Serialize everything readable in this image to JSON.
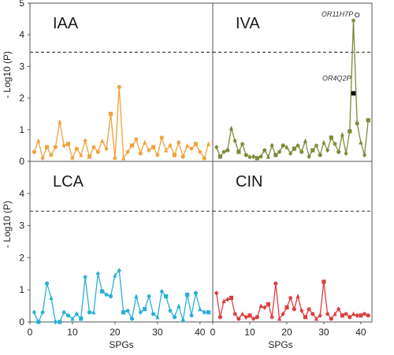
{
  "chart_data": {
    "type": "line",
    "ylabel": "- Log10 (P)",
    "xlabel": "SPGs",
    "xlim": [
      0,
      43
    ],
    "xticks": [
      0,
      10,
      20,
      30,
      40
    ],
    "ylim": [
      0,
      5
    ],
    "upper_yticks": [
      0,
      1,
      2,
      3,
      4,
      5
    ],
    "lower_yticks": [
      0,
      1,
      2,
      3,
      4
    ],
    "threshold": 3.45,
    "panels": [
      {
        "name": "IAA",
        "row": 0,
        "col": 0,
        "color": "#f0a23a",
        "x": [
          1,
          2,
          3,
          4,
          5,
          6,
          7,
          8,
          9,
          10,
          11,
          12,
          13,
          14,
          15,
          16,
          17,
          18,
          19,
          20,
          21,
          22,
          23,
          24,
          25,
          26,
          27,
          28,
          29,
          30,
          31,
          32,
          33,
          34,
          35,
          36,
          37,
          38,
          39,
          40,
          41,
          42
        ],
        "values": [
          0.3,
          0.65,
          0.1,
          0.45,
          0.2,
          0.45,
          1.25,
          0.5,
          0.55,
          0.1,
          0.4,
          0.2,
          0.65,
          0.15,
          0.45,
          0.3,
          0.65,
          0.4,
          1.5,
          0.1,
          2.35,
          0.1,
          0.3,
          0.5,
          0.7,
          0.25,
          0.6,
          0.35,
          0.45,
          0.2,
          0.75,
          0.35,
          0.5,
          0.2,
          0.6,
          0.15,
          0.5,
          0.4,
          0.55,
          0.3,
          0.1,
          0.55
        ]
      },
      {
        "name": "IVA",
        "row": 0,
        "col": 1,
        "color": "#7d8a38",
        "x": [
          1,
          2,
          3,
          4,
          5,
          6,
          7,
          8,
          9,
          10,
          11,
          12,
          13,
          14,
          15,
          16,
          17,
          18,
          19,
          20,
          21,
          22,
          23,
          24,
          25,
          26,
          27,
          28,
          29,
          30,
          31,
          32,
          33,
          34,
          35,
          36,
          37,
          38,
          39,
          40,
          41,
          42
        ],
        "values": [
          0.45,
          0.15,
          0.3,
          0.35,
          1.05,
          0.65,
          0.3,
          0.55,
          0.2,
          0.15,
          0.15,
          0.1,
          0.15,
          0.35,
          0.15,
          0.5,
          0.2,
          0.3,
          0.5,
          0.45,
          0.25,
          0.4,
          0.5,
          0.3,
          0.65,
          0.15,
          0.35,
          0.5,
          0.2,
          0.6,
          0.35,
          0.75,
          0.55,
          0.3,
          0.85,
          0.25,
          0.95,
          4.45,
          1.2,
          0.6,
          0.2,
          1.3
        ],
        "annotations": [
          {
            "text": "OR11H7P",
            "x": 39,
            "y": 4.55,
            "marker": "open-circle"
          },
          {
            "text": "OR4Q2P",
            "x": 38,
            "y": 2.15,
            "marker": "square"
          }
        ]
      },
      {
        "name": "LCA",
        "row": 1,
        "col": 0,
        "color": "#29afd6",
        "x": [
          1,
          2,
          3,
          4,
          5,
          6,
          7,
          8,
          9,
          10,
          11,
          12,
          13,
          14,
          15,
          16,
          17,
          18,
          19,
          20,
          21,
          22,
          23,
          24,
          25,
          26,
          27,
          28,
          29,
          30,
          31,
          32,
          33,
          34,
          35,
          36,
          37,
          38,
          39,
          40,
          41,
          42
        ],
        "values": [
          0.3,
          0.0,
          0.3,
          1.2,
          0.75,
          0.0,
          0.0,
          0.3,
          0.2,
          0.1,
          0.25,
          0.1,
          1.4,
          0.3,
          0.3,
          1.5,
          0.95,
          0.85,
          0.8,
          1.45,
          1.6,
          0.3,
          0.35,
          0.1,
          0.8,
          0.3,
          0.4,
          0.8,
          0.25,
          0.15,
          0.95,
          0.8,
          0.35,
          0.15,
          0.5,
          0.05,
          0.85,
          0.2,
          0.9,
          0.4,
          0.3,
          0.3
        ]
      },
      {
        "name": "CIN",
        "row": 1,
        "col": 1,
        "color": "#d94040",
        "x": [
          1,
          2,
          3,
          4,
          5,
          6,
          7,
          8,
          9,
          10,
          11,
          12,
          13,
          14,
          15,
          16,
          17,
          18,
          19,
          20,
          21,
          22,
          23,
          24,
          25,
          26,
          27,
          28,
          29,
          30,
          31,
          32,
          33,
          34,
          35,
          36,
          37,
          38,
          39,
          40,
          41,
          42
        ],
        "values": [
          0.9,
          0.15,
          0.65,
          0.7,
          0.75,
          0.25,
          0.1,
          0.25,
          0.15,
          0.2,
          0.1,
          0.15,
          0.5,
          0.45,
          0.55,
          0.15,
          1.2,
          0.1,
          0.25,
          0.45,
          0.75,
          0.4,
          0.8,
          0.35,
          0.15,
          0.4,
          0.25,
          0.1,
          0.2,
          1.25,
          0.25,
          0.1,
          0.25,
          0.4,
          0.2,
          0.25,
          0.15,
          0.25,
          0.2,
          0.2,
          0.25,
          0.2
        ]
      }
    ]
  }
}
